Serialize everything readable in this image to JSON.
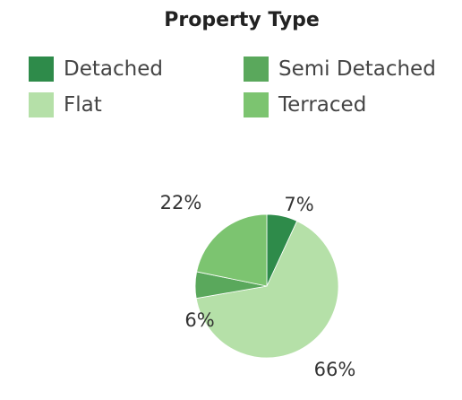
{
  "chart_data": {
    "type": "pie",
    "title": "Property Type",
    "legend_position": "top",
    "series": [
      {
        "name": "Detached",
        "value": 7,
        "label": "7%",
        "color": "#2e8b4a"
      },
      {
        "name": "Flat",
        "value": 66,
        "label": "66%",
        "color": "#b5e0a8"
      },
      {
        "name": "Semi Detached",
        "value": 6,
        "label": "6%",
        "color": "#5aa85c"
      },
      {
        "name": "Terraced",
        "value": 22,
        "label": "22%",
        "color": "#7cc470"
      }
    ],
    "legend": [
      {
        "name": "Detached",
        "color": "#2e8b4a"
      },
      {
        "name": "Semi Detached",
        "color": "#5aa85c"
      },
      {
        "name": "Flat",
        "color": "#b5e0a8"
      },
      {
        "name": "Terraced",
        "color": "#7cc470"
      }
    ]
  }
}
